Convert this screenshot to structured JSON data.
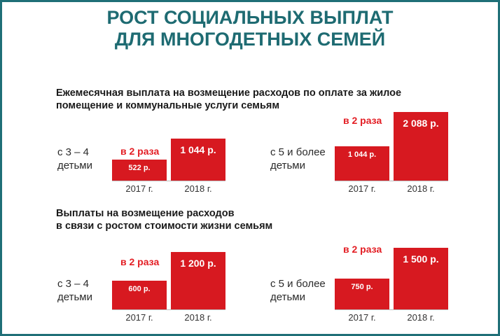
{
  "title": {
    "line1": "РОСТ СОЦИАЛЬНЫХ ВЫПЛАТ",
    "line2": "ДЛЯ МНОГОДЕТНЫХ СЕМЕЙ"
  },
  "sections": [
    {
      "title_line1": "Ежемесячная выплата на возмещение расходов по оплате за жилое",
      "title_line2": "помещение и коммунальные услуги семьям"
    },
    {
      "title_line1": "Выплаты на возмещение расходов",
      "title_line2": "в связи с ростом стоимости жизни семьям"
    }
  ],
  "colors": {
    "title": "#1e6b72",
    "bar": "#d71920",
    "accent": "#e31e24",
    "frame": "#1f6f77"
  },
  "chart_data": [
    {
      "type": "bar",
      "group_label": [
        "с 3 – 4",
        "детьми"
      ],
      "multiplier_label": "в 2 раза",
      "categories": [
        "2017 г.",
        "2018 г."
      ],
      "values": [
        522,
        1044
      ],
      "value_labels": [
        "522 р.",
        "1 044 р."
      ]
    },
    {
      "type": "bar",
      "group_label": [
        "с 5 и более",
        "детьми"
      ],
      "multiplier_label": "в 2 раза",
      "categories": [
        "2017 г.",
        "2018 г."
      ],
      "values": [
        1044,
        2088
      ],
      "value_labels": [
        "1 044 р.",
        "2 088 р."
      ]
    },
    {
      "type": "bar",
      "group_label": [
        "с 3 – 4",
        "детьми"
      ],
      "multiplier_label": "в 2 раза",
      "categories": [
        "2017 г.",
        "2018 г."
      ],
      "values": [
        600,
        1200
      ],
      "value_labels": [
        "600 р.",
        "1 200 р."
      ]
    },
    {
      "type": "bar",
      "group_label": [
        "с 5 и более",
        "детьми"
      ],
      "multiplier_label": "в 2 раза",
      "categories": [
        "2017 г.",
        "2018 г."
      ],
      "values": [
        750,
        1500
      ],
      "value_labels": [
        "750 р.",
        "1 500 р."
      ]
    }
  ]
}
